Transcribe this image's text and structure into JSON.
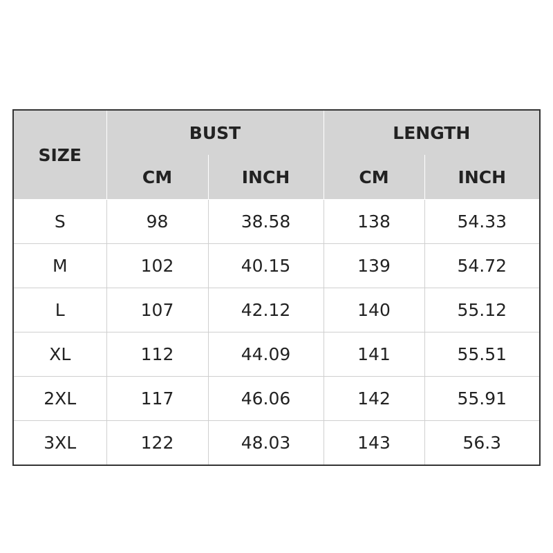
{
  "headers": {
    "size": "SIZE",
    "bust": "BUST",
    "length": "LENGTH",
    "bust_cm": "CM",
    "bust_inch": "INCH",
    "length_cm": "CM",
    "length_inch": "INCH"
  },
  "rows": [
    {
      "size": "S",
      "bust_cm": "98",
      "bust_inch": "38.58",
      "length_cm": "138",
      "length_inch": "54.33"
    },
    {
      "size": "M",
      "bust_cm": "102",
      "bust_inch": "40.15",
      "length_cm": "139",
      "length_inch": "54.72"
    },
    {
      "size": "L",
      "bust_cm": "107",
      "bust_inch": "42.12",
      "length_cm": "140",
      "length_inch": "55.12"
    },
    {
      "size": "XL",
      "bust_cm": "112",
      "bust_inch": "44.09",
      "length_cm": "141",
      "length_inch": "55.51"
    },
    {
      "size": "2XL",
      "bust_cm": "117",
      "bust_inch": "46.06",
      "length_cm": "142",
      "length_inch": "55.91"
    },
    {
      "size": "3XL",
      "bust_cm": "122",
      "bust_inch": "48.03",
      "length_cm": "143",
      "length_inch": "56.3"
    }
  ]
}
